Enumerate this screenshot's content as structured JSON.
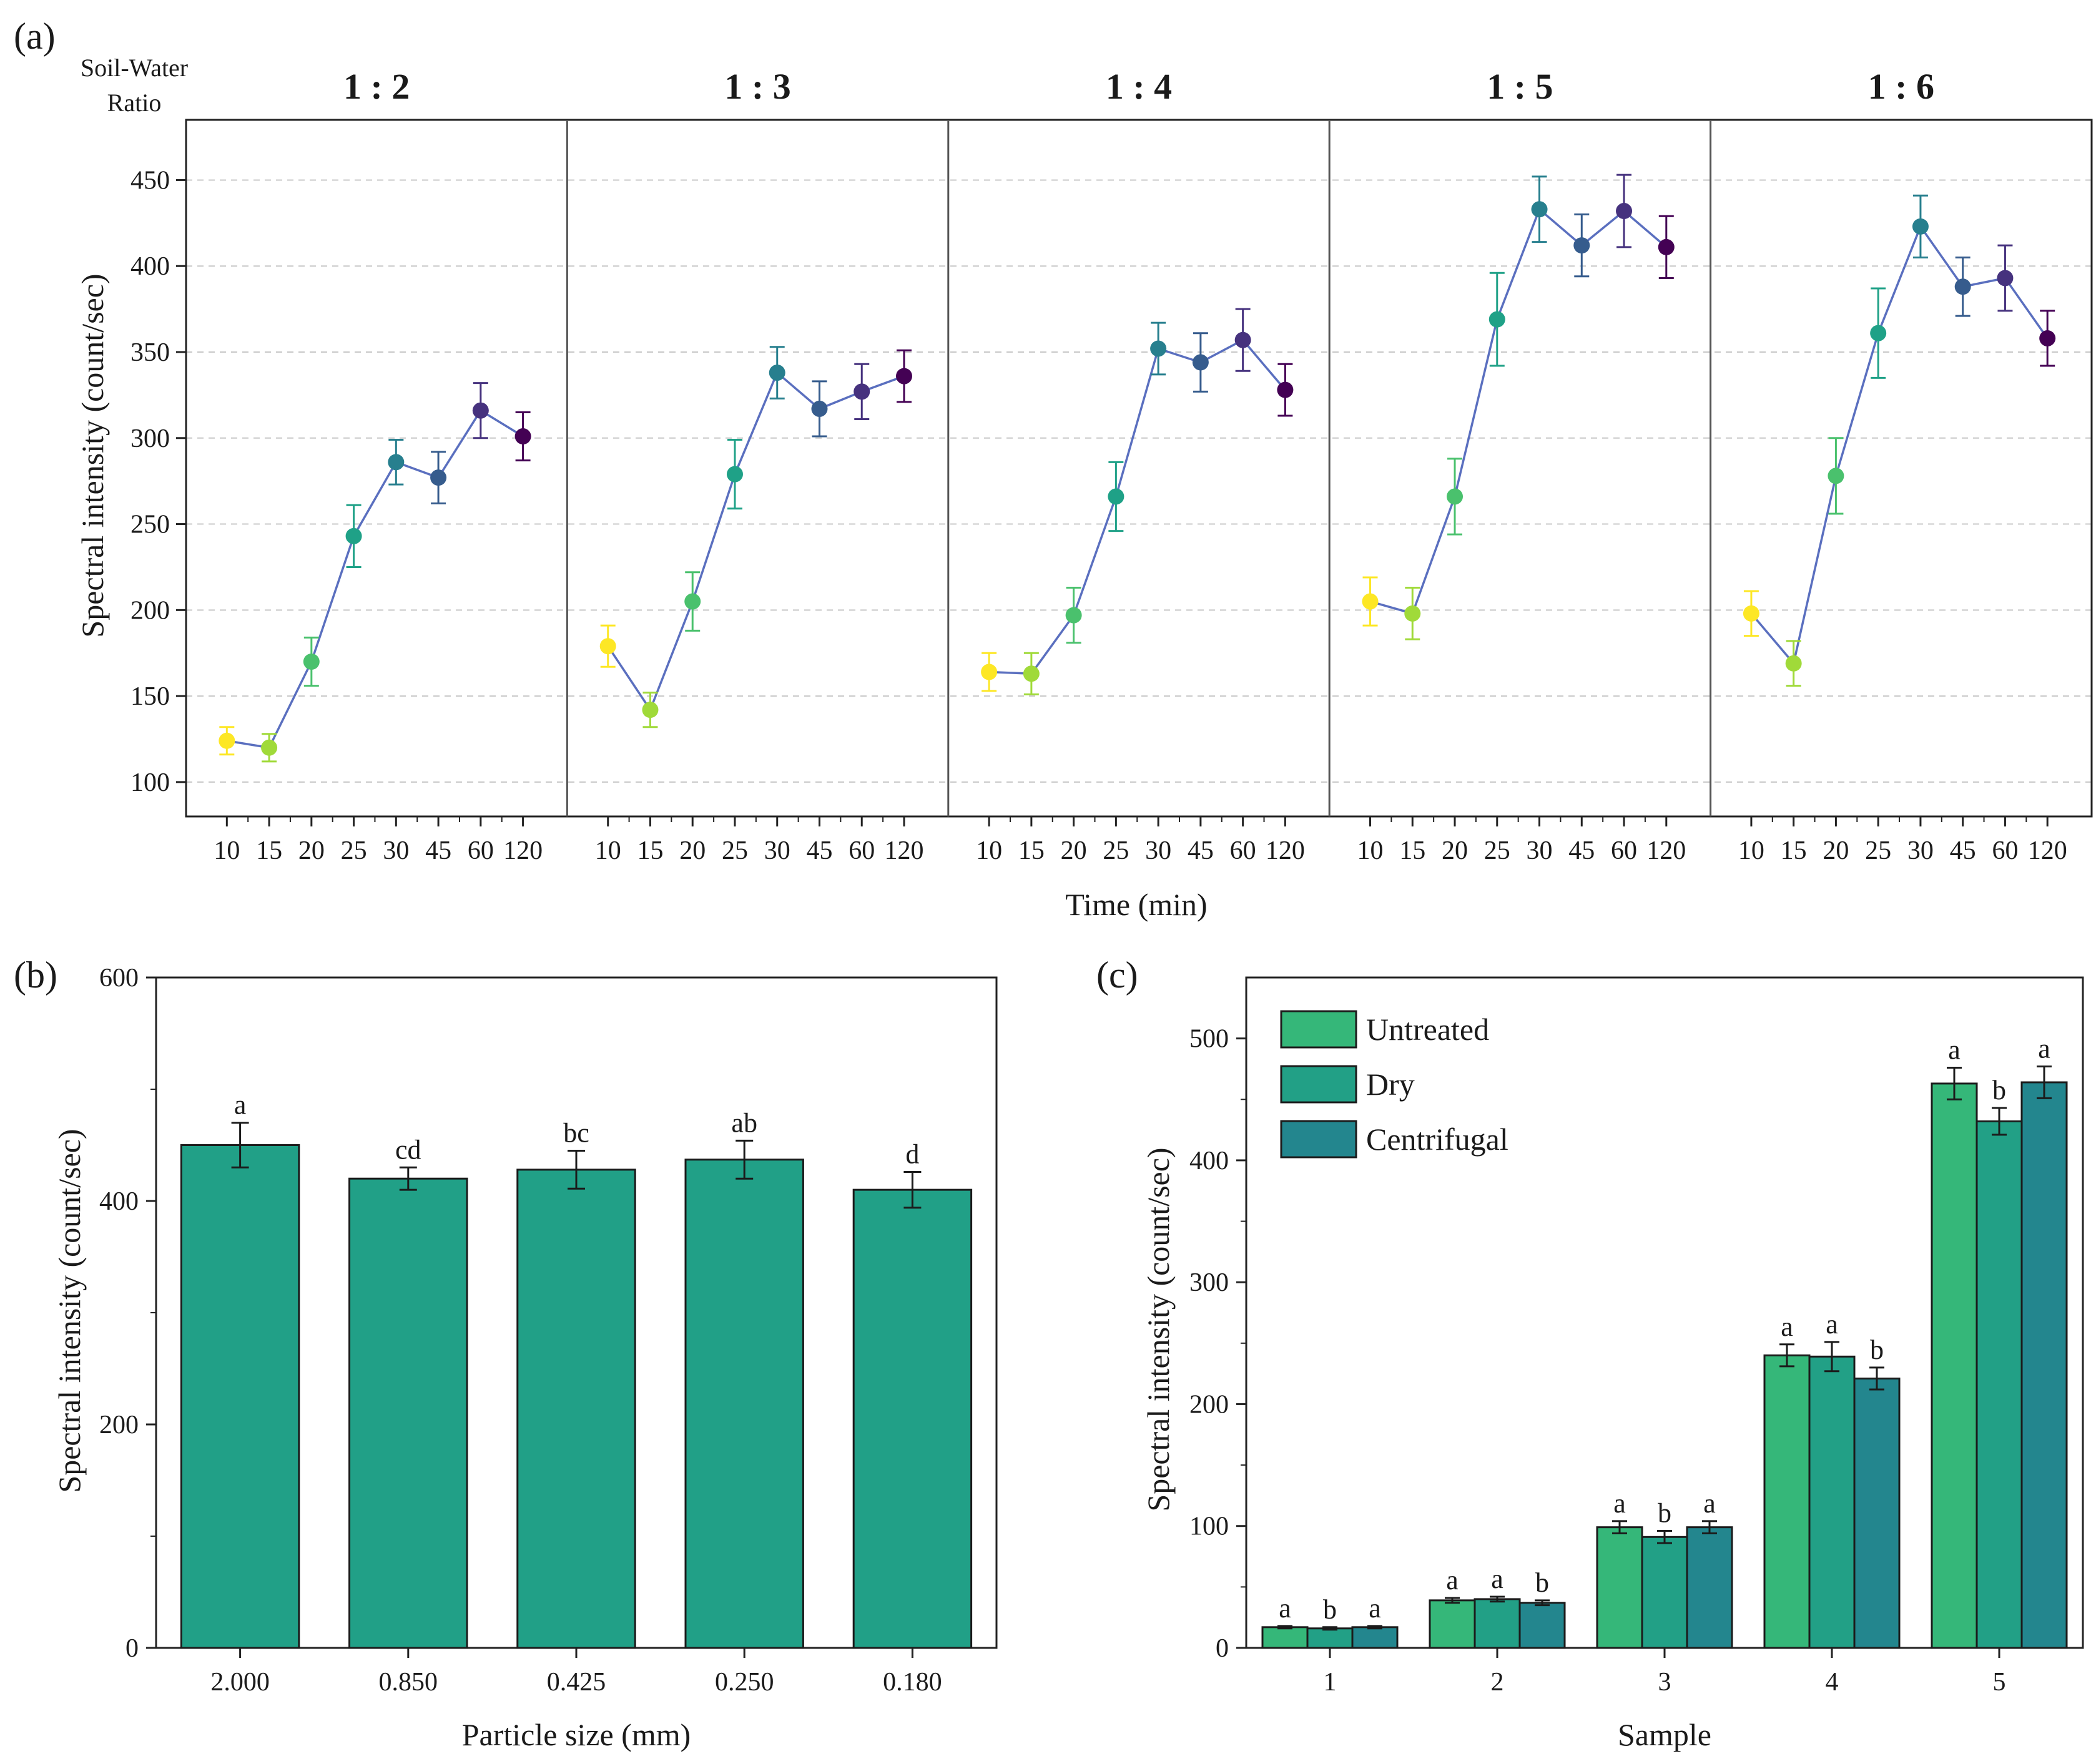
{
  "colors": {
    "axis": "#222222",
    "grid": "#c8c8c8",
    "line": "#5a6fbf",
    "bar_b": "#21a087",
    "untreated": "#35b779",
    "dry": "#22a086",
    "centrifugal": "#23868e"
  },
  "chart_data": [
    {
      "id": "a",
      "type": "line",
      "panel_label": "(a)",
      "group_title": "Soil-Water\nRatio",
      "group_title_line1": "Soil-Water",
      "group_title_line2": "Ratio",
      "xlabel": "Time (min)",
      "ylabel": "Spectral intensity (count/sec)",
      "ylim": [
        80,
        485
      ],
      "yticks": [
        100,
        150,
        200,
        250,
        300,
        350,
        400,
        450
      ],
      "grid": true,
      "categories": [
        "10",
        "15",
        "20",
        "25",
        "30",
        "45",
        "60",
        "120"
      ],
      "point_colors": [
        "#fde725",
        "#a0da39",
        "#4ac16d",
        "#1fa187",
        "#277f8e",
        "#365c8d",
        "#46327e",
        "#440154"
      ],
      "series": [
        {
          "name": "1 : 2",
          "values": [
            124,
            120,
            170,
            243,
            286,
            277,
            316,
            301
          ],
          "errors": [
            8,
            8,
            14,
            18,
            13,
            15,
            16,
            14
          ]
        },
        {
          "name": "1 : 3",
          "values": [
            179,
            142,
            205,
            279,
            338,
            317,
            327,
            336
          ],
          "errors": [
            12,
            10,
            17,
            20,
            15,
            16,
            16,
            15
          ]
        },
        {
          "name": "1 : 4",
          "values": [
            164,
            163,
            197,
            266,
            352,
            344,
            357,
            328
          ],
          "errors": [
            11,
            12,
            16,
            20,
            15,
            17,
            18,
            15
          ]
        },
        {
          "name": "1 : 5",
          "values": [
            205,
            198,
            266,
            369,
            433,
            412,
            432,
            411
          ],
          "errors": [
            14,
            15,
            22,
            27,
            19,
            18,
            21,
            18
          ]
        },
        {
          "name": "1 : 6",
          "values": [
            198,
            169,
            278,
            361,
            423,
            388,
            393,
            358
          ],
          "errors": [
            13,
            13,
            22,
            26,
            18,
            17,
            19,
            16
          ]
        }
      ]
    },
    {
      "id": "b",
      "type": "bar",
      "panel_label": "(b)",
      "xlabel": "Particle size (mm)",
      "ylabel": "Spectral intensity (count/sec)",
      "ylim": [
        0,
        600
      ],
      "yticks": [
        0,
        200,
        400,
        600
      ],
      "categories": [
        "2.000",
        "0.850",
        "0.425",
        "0.250",
        "0.180"
      ],
      "values": [
        450,
        420,
        428,
        437,
        410
      ],
      "errors": [
        20,
        10,
        17,
        17,
        16
      ],
      "labels": [
        "a",
        "cd",
        "bc",
        "ab",
        "d"
      ]
    },
    {
      "id": "c",
      "type": "bar",
      "panel_label": "(c)",
      "xlabel": "Sample",
      "ylabel": "Spectral intensity (count/sec)",
      "ylim": [
        0,
        550
      ],
      "yticks": [
        0,
        100,
        200,
        300,
        400,
        500
      ],
      "categories": [
        "1",
        "2",
        "3",
        "4",
        "5"
      ],
      "legend_position": "top-left",
      "series": [
        {
          "name": "Untreated",
          "values": [
            17,
            39,
            99,
            240,
            463
          ],
          "errors": [
            1,
            2,
            5,
            9,
            13
          ],
          "labels": [
            "a",
            "a",
            "a",
            "a",
            "a"
          ]
        },
        {
          "name": "Dry",
          "values": [
            16,
            40,
            91,
            239,
            432
          ],
          "errors": [
            1,
            2,
            5,
            12,
            11
          ],
          "labels": [
            "b",
            "a",
            "b",
            "a",
            "b"
          ]
        },
        {
          "name": "Centrifugal",
          "values": [
            17,
            37,
            99,
            221,
            464
          ],
          "errors": [
            1,
            2,
            5,
            9,
            13
          ],
          "labels": [
            "a",
            "b",
            "a",
            "b",
            "a"
          ]
        }
      ]
    }
  ]
}
